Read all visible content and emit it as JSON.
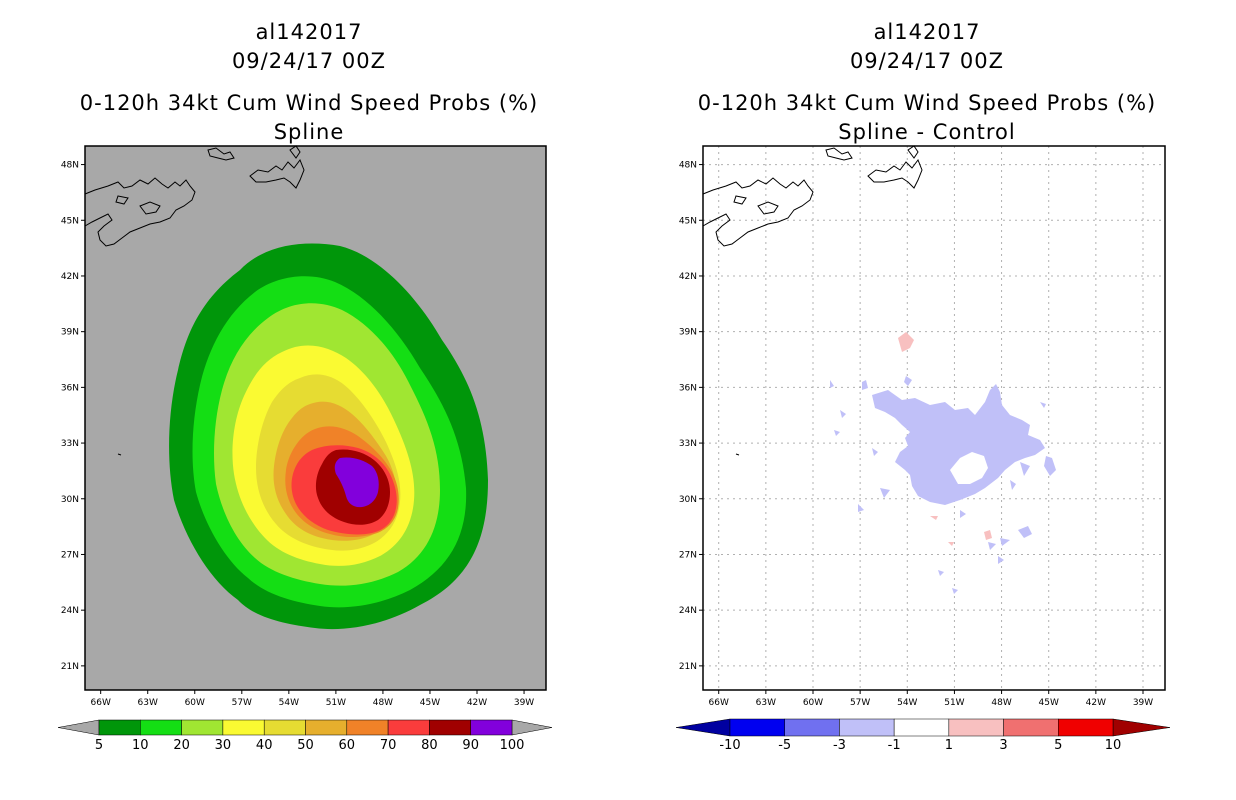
{
  "chart_data": [
    {
      "type": "heatmap",
      "storm_id": "al142017",
      "datetime": "09/24/17 00Z",
      "title": "0-120h 34kt Cum Wind Speed Probs (%)",
      "subtitle": "Spline",
      "x_ticks": [
        "66W",
        "63W",
        "60W",
        "57W",
        "54W",
        "51W",
        "48W",
        "45W",
        "42W",
        "39W"
      ],
      "y_ticks": [
        "48N",
        "45N",
        "42N",
        "39N",
        "36N",
        "33N",
        "30N",
        "27N",
        "24N",
        "21N"
      ],
      "xlim": [
        -67,
        -37.6
      ],
      "ylim": [
        19.7,
        49
      ],
      "grid": false,
      "colorbar": {
        "labels": [
          "5",
          "10",
          "20",
          "30",
          "40",
          "50",
          "60",
          "70",
          "80",
          "90",
          "100"
        ],
        "colors": [
          "#00960a",
          "#14de14",
          "#a0e632",
          "#fafa32",
          "#e6dc32",
          "#e6af2d",
          "#f08228",
          "#fa3c3c",
          "#a00000",
          "#8200dc"
        ]
      },
      "contours": [
        {
          "level": 5,
          "color": "#00960a"
        },
        {
          "level": 10,
          "color": "#14de14"
        },
        {
          "level": 20,
          "color": "#a0e632"
        },
        {
          "level": 30,
          "color": "#fafa32"
        },
        {
          "level": 40,
          "color": "#e6dc32"
        },
        {
          "level": 50,
          "color": "#e6af2d"
        },
        {
          "level": 60,
          "color": "#f08228"
        },
        {
          "level": 70,
          "color": "#fa3c3c"
        },
        {
          "level": 80,
          "color": "#a00000"
        },
        {
          "level": 90,
          "color": "#8200dc"
        }
      ]
    },
    {
      "type": "heatmap",
      "storm_id": "al142017",
      "datetime": "09/24/17 00Z",
      "title": "0-120h 34kt Cum Wind Speed Probs (%)",
      "subtitle": "Spline - Control",
      "x_ticks": [
        "66W",
        "63W",
        "60W",
        "57W",
        "54W",
        "51W",
        "48W",
        "45W",
        "42W",
        "39W"
      ],
      "y_ticks": [
        "48N",
        "45N",
        "42N",
        "39N",
        "36N",
        "33N",
        "30N",
        "27N",
        "24N",
        "21N"
      ],
      "xlim": [
        -67,
        -37.6
      ],
      "ylim": [
        19.7,
        49
      ],
      "grid": true,
      "colorbar": {
        "labels": [
          "-10",
          "-5",
          "-3",
          "-1",
          "1",
          "3",
          "5",
          "10"
        ],
        "colors": [
          "#0000a0",
          "#0000f0",
          "#7070f0",
          "#c0c0f8",
          "#ffffff",
          "#f8c0c0",
          "#f07070",
          "#f00000",
          "#a00000"
        ]
      },
      "regions": [
        {
          "sign": "negative",
          "range": "-3 to -1",
          "color": "#c0c0f8"
        },
        {
          "sign": "positive",
          "range": "1 to 3",
          "color": "#f8c0c0"
        }
      ]
    }
  ]
}
